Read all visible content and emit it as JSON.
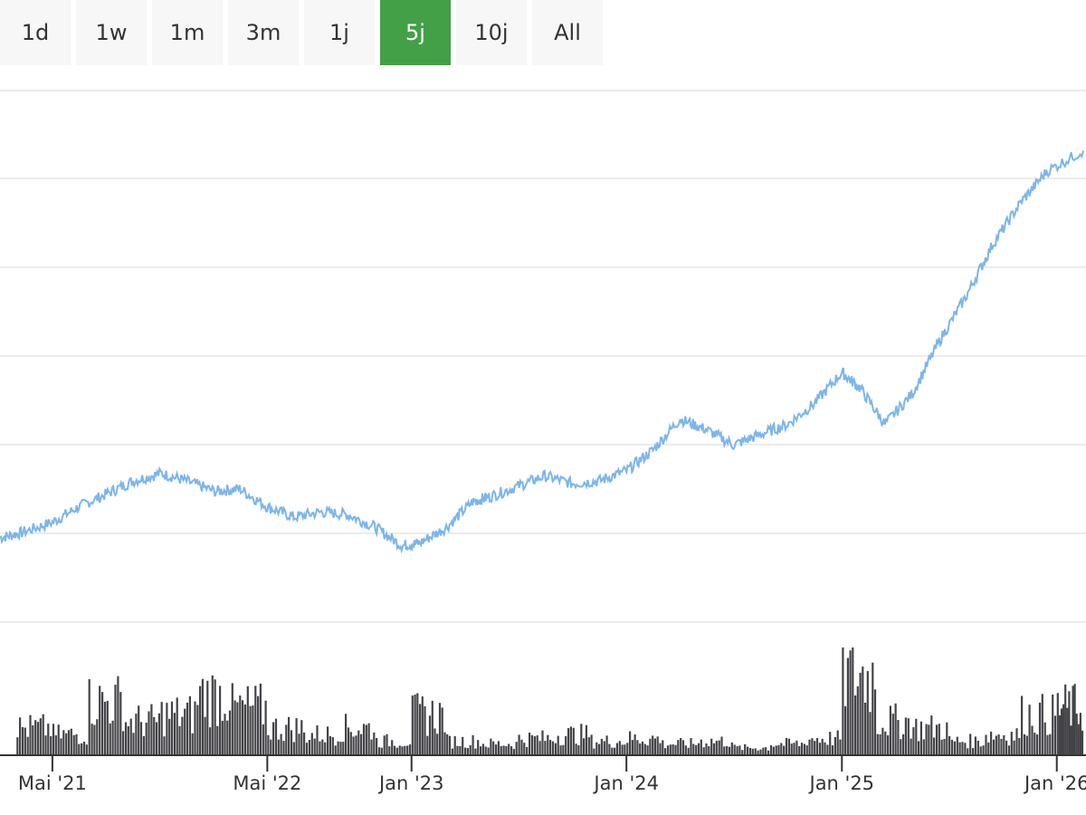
{
  "range_selector": {
    "buttons": [
      {
        "label": "1d",
        "active": false
      },
      {
        "label": "1w",
        "active": false
      },
      {
        "label": "1m",
        "active": false
      },
      {
        "label": "3m",
        "active": false
      },
      {
        "label": "1j",
        "active": false
      },
      {
        "label": "5j",
        "active": true
      },
      {
        "label": "10j",
        "active": false
      },
      {
        "label": "All",
        "active": false
      }
    ],
    "active_color": "#43a047"
  },
  "chart_data": {
    "type": "line",
    "title": "",
    "xlabel": "",
    "ylabel": "",
    "grid": true,
    "legend": "none",
    "colors": {
      "price_line": "#7cb5ec",
      "volume_bars": "#434348",
      "grid": "#e6e6e6"
    },
    "x_ticks": [
      {
        "label": "Mai '21",
        "date": "2021-05-01"
      },
      {
        "label": "Mai '22",
        "date": "2022-05-01"
      },
      {
        "label": "Jan '23",
        "date": "2023-01-01"
      },
      {
        "label": "Jan '24",
        "date": "2024-01-01"
      },
      {
        "label": "Jan '25",
        "date": "2025-01-01"
      },
      {
        "label": "Jan '26",
        "date": "2026-01-01"
      }
    ],
    "xlim": [
      "2021-02-01",
      "2026-02-15"
    ],
    "series": [
      {
        "type": "line",
        "dates": [
          "2021-02-01",
          "2021-03-10",
          "2021-05-01",
          "2021-06-15",
          "2021-08-01",
          "2021-09-15",
          "2021-11-01",
          "2021-12-15",
          "2022-02-01",
          "2022-03-15",
          "2022-05-01",
          "2022-06-15",
          "2022-08-01",
          "2022-09-15",
          "2022-11-01",
          "2022-12-15",
          "2023-01-15",
          "2023-03-01",
          "2023-04-15",
          "2023-05-15",
          "2023-07-01",
          "2023-08-15",
          "2023-10-01",
          "2023-11-15",
          "2024-01-01",
          "2024-02-15",
          "2024-04-01",
          "2024-05-15",
          "2024-07-01",
          "2024-08-15",
          "2024-10-01",
          "2024-11-15",
          "2025-01-01",
          "2025-02-01",
          "2025-03-15",
          "2025-05-01",
          "2025-06-15",
          "2025-08-01",
          "2025-09-15",
          "2025-11-01",
          "2025-12-15",
          "2026-02-15"
        ],
        "values": [
          -50,
          -40,
          -20,
          10,
          35,
          60,
          75,
          60,
          40,
          45,
          10,
          -10,
          0,
          -5,
          -30,
          -65,
          -60,
          -30,
          20,
          30,
          50,
          70,
          55,
          60,
          80,
          120,
          180,
          160,
          130,
          150,
          170,
          210,
          270,
          240,
          170,
          230,
          330,
          420,
          520,
          600,
          660,
          700
        ]
      },
      {
        "type": "bar",
        "dates": [
          "2021-03-01",
          "2021-05-01",
          "2021-07-01",
          "2021-09-01",
          "2021-11-01",
          "2022-01-01",
          "2022-03-01",
          "2022-05-01",
          "2022-07-01",
          "2022-09-01",
          "2022-11-01",
          "2023-01-01",
          "2023-03-01",
          "2023-05-01",
          "2023-07-01",
          "2023-09-01",
          "2023-11-01",
          "2024-01-01",
          "2024-03-01",
          "2024-05-01",
          "2024-07-01",
          "2024-09-01",
          "2024-11-01",
          "2025-01-01",
          "2025-03-01",
          "2025-05-01",
          "2025-07-01",
          "2025-09-01",
          "2025-11-01",
          "2026-01-01"
        ],
        "values": [
          20,
          15,
          40,
          25,
          30,
          45,
          35,
          20,
          15,
          20,
          10,
          30,
          10,
          8,
          12,
          15,
          10,
          12,
          8,
          10,
          5,
          8,
          12,
          60,
          25,
          20,
          10,
          15,
          30,
          35
        ]
      }
    ]
  }
}
